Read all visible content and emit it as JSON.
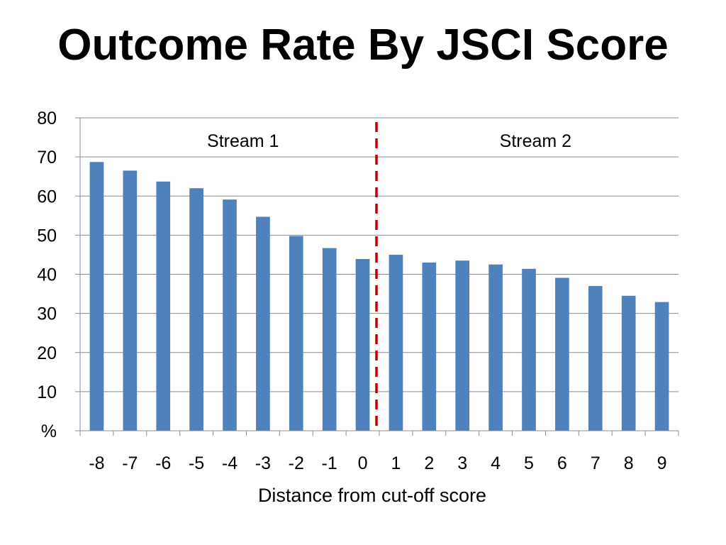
{
  "chart_data": {
    "type": "bar",
    "title": "Outcome Rate By JSCI Score",
    "xlabel": "Distance from cut-off score",
    "ylabel": "%",
    "categories": [
      "-8",
      "-7",
      "-6",
      "-5",
      "-4",
      "-3",
      "-2",
      "-1",
      "0",
      "1",
      "2",
      "3",
      "4",
      "5",
      "6",
      "7",
      "8",
      "9"
    ],
    "series": [
      {
        "values": [
          68.7,
          66.5,
          63.7,
          62.0,
          59.1,
          54.7,
          49.8,
          46.7,
          43.9,
          45.0,
          43.0,
          43.5,
          42.5,
          41.4,
          39.1,
          37.0,
          34.5,
          32.9
        ]
      }
    ],
    "ylim": [
      0,
      80
    ],
    "yticks": [
      {
        "value": 0,
        "label": "%"
      },
      {
        "value": 10,
        "label": "10"
      },
      {
        "value": 20,
        "label": "20"
      },
      {
        "value": 30,
        "label": "30"
      },
      {
        "value": 40,
        "label": "40"
      },
      {
        "value": 50,
        "label": "50"
      },
      {
        "value": 60,
        "label": "60"
      },
      {
        "value": 70,
        "label": "70"
      },
      {
        "value": 80,
        "label": "80"
      }
    ],
    "grid": true,
    "bar_color": "#4f81bd",
    "cutoff_line": {
      "between_categories": [
        "0",
        "1"
      ],
      "color": "#c00000",
      "style": "dashed"
    },
    "annotations": [
      {
        "text": "Stream 1",
        "region": "left-of-cutoff"
      },
      {
        "text": "Stream 2",
        "region": "right-of-cutoff"
      }
    ]
  }
}
